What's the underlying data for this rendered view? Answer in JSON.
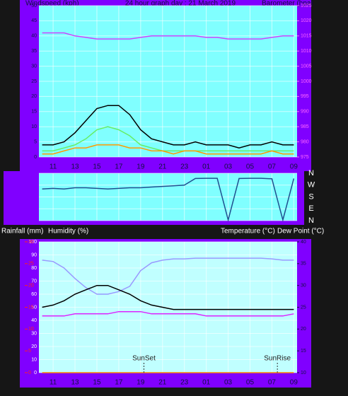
{
  "chart_data": [
    {
      "type": "line",
      "title": "24 hour graph day : 21 March 2019",
      "y_label": "Windspeed (kph)",
      "y2_label": "Barometer (hpa)",
      "x": [
        1,
        2,
        3,
        4,
        5,
        6,
        7,
        8,
        9,
        10,
        11,
        12,
        13,
        14,
        15,
        16,
        17,
        18,
        19,
        20,
        21,
        22,
        23,
        24
      ],
      "xlim": [
        0.7,
        24.3
      ],
      "xticks": [
        {
          "value": 2,
          "label": "11"
        },
        {
          "value": 4,
          "label": "13"
        },
        {
          "value": 6,
          "label": "15"
        },
        {
          "value": 8,
          "label": "17"
        },
        {
          "value": 10,
          "label": "19"
        },
        {
          "value": 12,
          "label": "21"
        },
        {
          "value": 14,
          "label": "23"
        },
        {
          "value": 16,
          "label": "01"
        },
        {
          "value": 18,
          "label": "03"
        },
        {
          "value": 20,
          "label": "05"
        },
        {
          "value": 22,
          "label": "07"
        },
        {
          "value": 24,
          "label": "09"
        }
      ],
      "ylim": [
        0,
        50
      ],
      "yticks": [
        0,
        5,
        10,
        15,
        20,
        25,
        30,
        35,
        40,
        45,
        50
      ],
      "y2lim": [
        975,
        1025
      ],
      "y2ticks": [
        975,
        980,
        985,
        990,
        995,
        1000,
        1005,
        1010,
        1015,
        1020,
        1025
      ],
      "grid": true,
      "series": [
        {
          "color": "#000000",
          "values": [
            4,
            4,
            5,
            8,
            12,
            16,
            17,
            17,
            14,
            9,
            6,
            5,
            4,
            4,
            5,
            4,
            4,
            4,
            3,
            4,
            4,
            5,
            4,
            4
          ]
        },
        {
          "color": "#66ee66",
          "values": [
            2,
            2,
            3,
            4,
            6,
            9,
            10,
            9,
            7,
            4,
            3,
            2,
            2,
            2,
            2,
            2,
            2,
            2,
            2,
            2,
            2,
            2,
            2,
            2
          ]
        },
        {
          "color": "#ff9900",
          "values": [
            1,
            1,
            2,
            3,
            3,
            4,
            4,
            4,
            3,
            3,
            2,
            2,
            1,
            2,
            2,
            1,
            1,
            1,
            1,
            1,
            1,
            2,
            1,
            1
          ]
        },
        {
          "color": "#cc44ff",
          "axis": "y2",
          "values": [
            1016,
            1016,
            1016,
            1015,
            1014.5,
            1014,
            1014,
            1014,
            1014,
            1014.5,
            1015,
            1015,
            1015,
            1015,
            1015,
            1014.5,
            1014.5,
            1014,
            1014,
            1014,
            1014,
            1014.5,
            1015,
            1015
          ]
        }
      ]
    },
    {
      "type": "line",
      "x": [
        1,
        2,
        3,
        4,
        5,
        6,
        7,
        8,
        9,
        10,
        11,
        12,
        13,
        14,
        15,
        16,
        17,
        18,
        19,
        20,
        21,
        22,
        23,
        24
      ],
      "xlim": [
        0.7,
        24.3
      ],
      "ylim": [
        0,
        360
      ],
      "yticks": [
        {
          "value": 360,
          "label": "N"
        },
        {
          "value": 270,
          "label": "W"
        },
        {
          "value": 180,
          "label": "S"
        },
        {
          "value": 90,
          "label": "E"
        },
        {
          "value": 0,
          "label": "N"
        }
      ],
      "series": [
        {
          "color": "#1f4f8f",
          "values": [
            240,
            245,
            240,
            250,
            250,
            245,
            240,
            245,
            250,
            250,
            255,
            260,
            265,
            270,
            320,
            322,
            322,
            5,
            320,
            322,
            322,
            318,
            5,
            320
          ]
        }
      ]
    },
    {
      "type": "line",
      "y_label": "Humidity (%)",
      "y3_label": "Rainfall (mm)",
      "y2_labels": [
        "Temperature (°C)",
        "Dew Point (°C)"
      ],
      "x": [
        1,
        2,
        3,
        4,
        5,
        6,
        7,
        8,
        9,
        10,
        11,
        12,
        13,
        14,
        15,
        16,
        17,
        18,
        19,
        20,
        21,
        22,
        23,
        24
      ],
      "xlim": [
        0.7,
        24.3
      ],
      "xticks": [
        {
          "value": 2,
          "label": "11"
        },
        {
          "value": 4,
          "label": "13"
        },
        {
          "value": 6,
          "label": "15"
        },
        {
          "value": 8,
          "label": "17"
        },
        {
          "value": 10,
          "label": "19"
        },
        {
          "value": 12,
          "label": "21"
        },
        {
          "value": 14,
          "label": "23"
        },
        {
          "value": 16,
          "label": "01"
        },
        {
          "value": 18,
          "label": "03"
        },
        {
          "value": 20,
          "label": "05"
        },
        {
          "value": 22,
          "label": "07"
        },
        {
          "value": 24,
          "label": "09"
        }
      ],
      "ylim": [
        0,
        100
      ],
      "yticks": [
        0,
        10,
        20,
        30,
        40,
        50,
        60,
        70,
        80,
        90,
        100
      ],
      "y2lim": [
        10,
        40
      ],
      "y2ticks": [
        10,
        15,
        20,
        25,
        30,
        35,
        40
      ],
      "y3lim": [
        0,
        30
      ],
      "y3ticks": [
        0,
        5,
        10,
        15,
        20,
        25,
        30
      ],
      "grid": true,
      "series": [
        {
          "color": "#9999ff",
          "values": [
            86,
            85,
            80,
            72,
            65,
            60,
            60,
            62,
            66,
            78,
            84,
            86,
            87,
            87,
            87.5,
            87.5,
            87.5,
            87.5,
            87.5,
            87.5,
            87.5,
            87,
            86,
            86
          ]
        },
        {
          "color": "#000000",
          "axis": "y2",
          "values": [
            25,
            25.5,
            26.5,
            28,
            29,
            30,
            30,
            29,
            28,
            26.5,
            25.5,
            25,
            24.5,
            24.5,
            24.5,
            24.5,
            24.5,
            24.5,
            24.5,
            24.5,
            24.5,
            24.5,
            24.5,
            24.5
          ]
        },
        {
          "color": "#dd22ff",
          "axis": "y2",
          "values": [
            23,
            23,
            23,
            23.5,
            23.5,
            23.5,
            23.5,
            24,
            24,
            24,
            23.5,
            23.5,
            23.5,
            23.5,
            23.5,
            23,
            23,
            23,
            23,
            23,
            23,
            23,
            23,
            23.5
          ]
        },
        {
          "color": "#ff8800",
          "axis": "y3",
          "values": [
            0,
            0,
            0,
            0,
            0,
            0,
            0,
            0,
            0,
            0,
            0,
            0,
            0,
            0,
            0,
            0,
            0,
            0,
            0,
            0,
            0,
            0,
            0,
            0
          ]
        }
      ],
      "annotations": [
        {
          "text": "SunSet",
          "x": 10.3
        },
        {
          "text": "SunRise",
          "x": 22.5
        }
      ]
    }
  ]
}
